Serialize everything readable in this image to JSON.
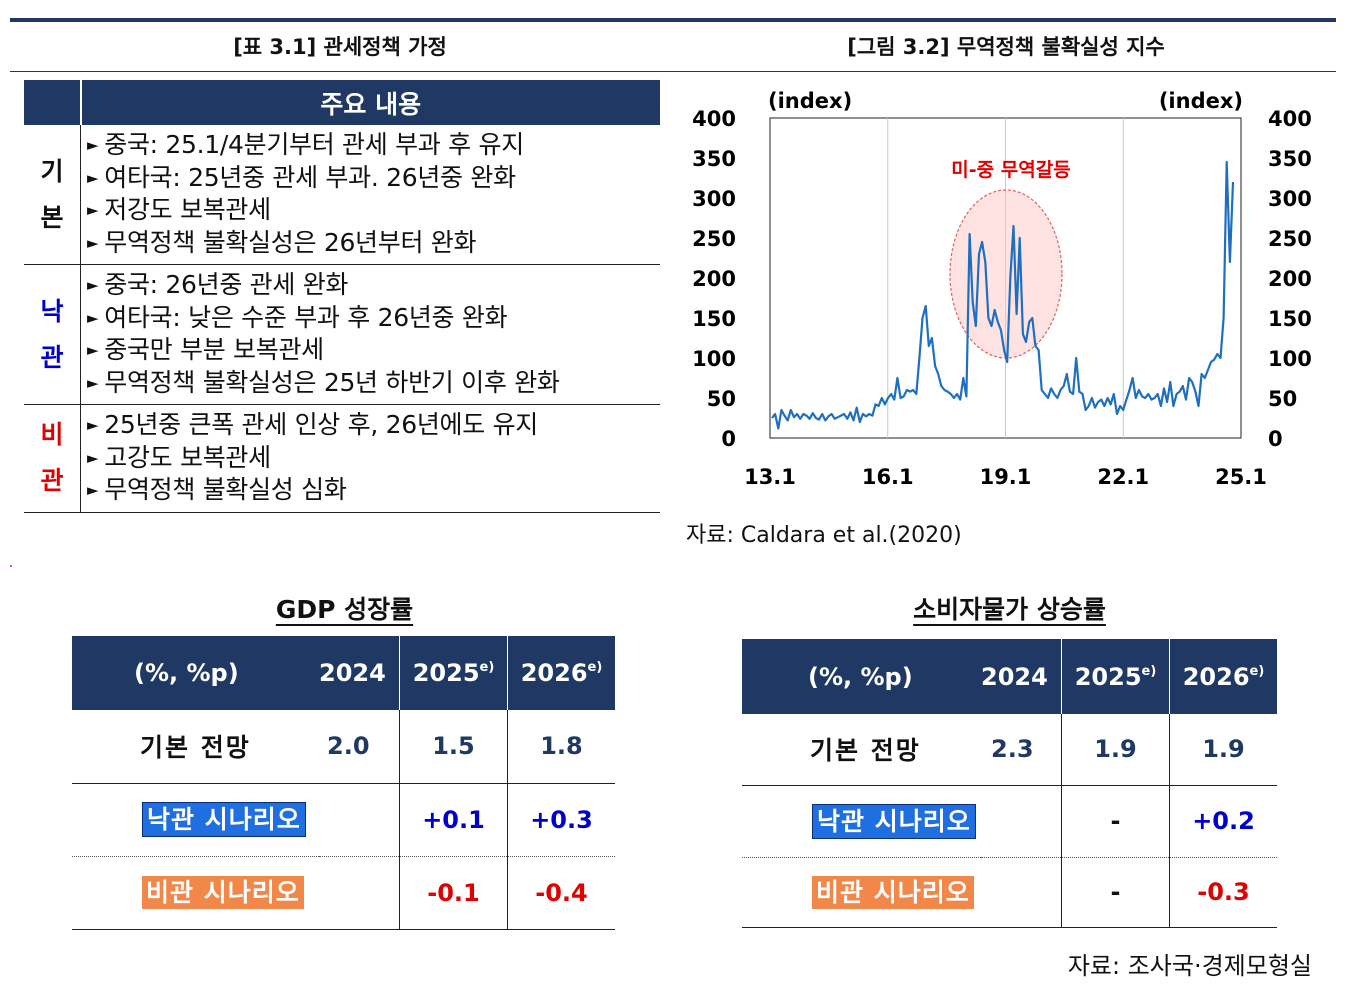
{
  "table31": {
    "title": "[표 3.1] 관세정책 가정",
    "header": "주요 내용",
    "rows": [
      {
        "label1": "기",
        "label2": "본",
        "color": "#111111",
        "items": [
          "중국: 25.1/4분기부터 관세 부과 후 유지",
          "여타국: 25년중 관세 부과. 26년중 완화",
          "저강도 보복관세",
          "무역정책 불확실성은 26년부터 완화"
        ]
      },
      {
        "label1": "낙",
        "label2": "관",
        "color": "#0000cc",
        "items": [
          "중국: 26년중 관세 완화",
          "여타국: 낮은 수준 부과 후 26년중 완화",
          "중국만 부분 보복관세",
          "무역정책 불확실성은 25년 하반기 이후 완화"
        ]
      },
      {
        "label1": "비",
        "label2": "관",
        "color": "#e00000",
        "items": [
          "25년중 큰폭 관세 인상 후, 26년에도 유지",
          "고강도 보복관세",
          "무역정책 불확실성 심화"
        ]
      }
    ]
  },
  "figure32": {
    "title": "[그림 3.2] 무역정책 불확실성 지수",
    "source": "자료: Caldara et al.(2020)"
  },
  "chart_data": {
    "type": "line",
    "ylabel_left": "(index)",
    "ylabel_right": "(index)",
    "ylim": [
      0,
      400
    ],
    "yticks": [
      "0",
      "50",
      "100",
      "150",
      "200",
      "250",
      "300",
      "350",
      "400"
    ],
    "xticks": [
      "13.1",
      "16.1",
      "19.1",
      "22.1",
      "25.1"
    ],
    "annotation": "미-중 무역갈등",
    "annotation_color": "#e00000",
    "line_color": "#1f6fc0",
    "x_start": "2013.0",
    "series": [
      {
        "values": [
          25,
          30,
          12,
          35,
          28,
          22,
          35,
          26,
          30,
          24,
          30,
          28,
          24,
          31,
          25,
          23,
          30,
          22,
          27,
          30,
          24,
          26,
          28,
          30,
          24,
          32,
          22,
          38,
          20,
          30,
          27,
          30,
          28,
          42,
          40,
          50,
          42,
          50,
          55,
          48,
          75,
          50,
          52,
          60,
          58,
          60,
          55,
          100,
          150,
          165,
          115,
          125,
          90,
          80,
          65,
          60,
          58,
          55,
          50,
          55,
          48,
          75,
          52,
          255,
          170,
          140,
          230,
          245,
          220,
          150,
          140,
          160,
          145,
          135,
          110,
          95,
          200,
          265,
          155,
          250,
          130,
          120,
          145,
          150,
          115,
          110,
          60,
          55,
          50,
          62,
          55,
          50,
          60,
          65,
          80,
          58,
          55,
          100,
          58,
          55,
          35,
          40,
          50,
          38,
          45,
          48,
          40,
          50,
          42,
          55,
          30,
          40,
          35,
          48,
          60,
          75,
          50,
          60,
          52,
          50,
          55,
          48,
          50,
          55,
          40,
          62,
          45,
          70,
          40,
          55,
          58,
          65,
          48,
          75,
          70,
          58,
          40,
          80,
          75,
          85,
          95,
          98,
          105,
          100,
          150,
          345,
          220,
          320
        ]
      }
    ]
  },
  "gdp": {
    "title": "GDP 성장률",
    "unit": "(%, %p)",
    "y2024": "2024",
    "y2025": "2025",
    "y2026": "2026",
    "sup": "e)",
    "base_label": "기본 전망",
    "base_2024": "2.0",
    "base_2025": "1.5",
    "base_2026": "1.8",
    "opt_label": "낙관 시나리오",
    "opt_2025": "+0.1",
    "opt_2026": "+0.3",
    "pes_label": "비관 시나리오",
    "pes_2025": "-0.1",
    "pes_2026": "-0.4"
  },
  "cpi": {
    "title": "소비자물가 상승률",
    "unit": "(%, %p)",
    "y2024": "2024",
    "y2025": "2025",
    "y2026": "2026",
    "sup": "e)",
    "base_label": "기본 전망",
    "base_2024": "2.3",
    "base_2025": "1.9",
    "base_2026": "1.9",
    "opt_label": "낙관 시나리오",
    "opt_2025": "-",
    "opt_2026": "+0.2",
    "pes_label": "비관 시나리오",
    "pes_2025": "-",
    "pes_2026": "-0.3"
  },
  "footer_source": "자료: 조사국·경제모형실"
}
